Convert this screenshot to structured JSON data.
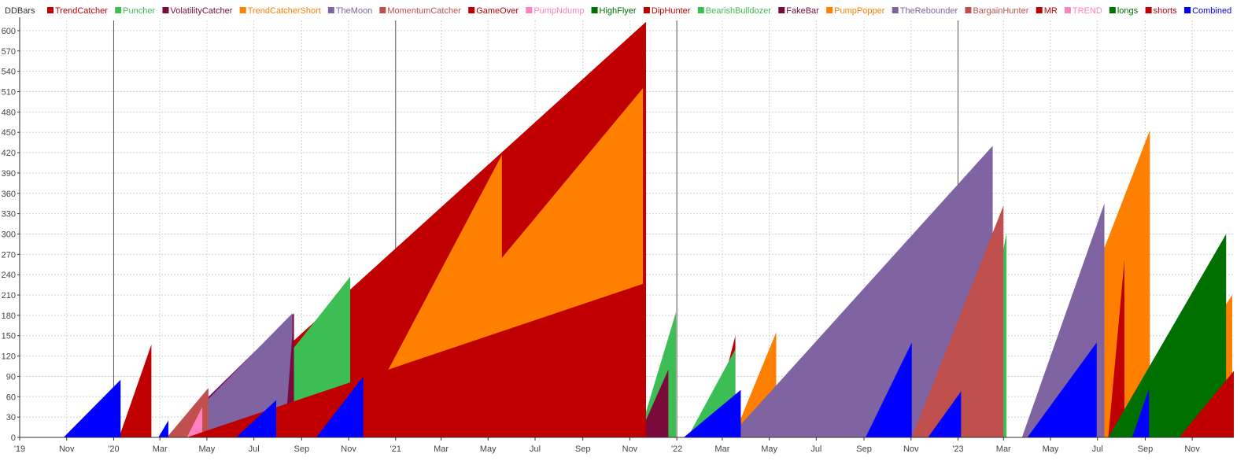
{
  "chart_data": {
    "type": "area",
    "title": "DDBars",
    "legend_position": "top",
    "grid": true,
    "ylim": [
      0,
      615
    ],
    "y_ticks": [
      0,
      30,
      60,
      90,
      120,
      150,
      180,
      210,
      240,
      270,
      300,
      330,
      360,
      390,
      420,
      450,
      480,
      510,
      540,
      570,
      600
    ],
    "x_start": "2019-09-01",
    "x_end": "2023-12-25",
    "x_ticks": [
      {
        "date": "2019-09-01",
        "label": "'19",
        "year": true
      },
      {
        "date": "2019-11-01",
        "label": "Nov",
        "year": false
      },
      {
        "date": "2020-01-01",
        "label": "'20",
        "year": true
      },
      {
        "date": "2020-03-01",
        "label": "Mar",
        "year": false
      },
      {
        "date": "2020-05-01",
        "label": "May",
        "year": false
      },
      {
        "date": "2020-07-01",
        "label": "Jul",
        "year": false
      },
      {
        "date": "2020-09-01",
        "label": "Sep",
        "year": false
      },
      {
        "date": "2020-11-01",
        "label": "Nov",
        "year": false
      },
      {
        "date": "2021-01-01",
        "label": "'21",
        "year": true
      },
      {
        "date": "2021-03-01",
        "label": "Mar",
        "year": false
      },
      {
        "date": "2021-05-01",
        "label": "May",
        "year": false
      },
      {
        "date": "2021-07-01",
        "label": "Jul",
        "year": false
      },
      {
        "date": "2021-09-01",
        "label": "Sep",
        "year": false
      },
      {
        "date": "2021-11-01",
        "label": "Nov",
        "year": false
      },
      {
        "date": "2022-01-01",
        "label": "'22",
        "year": true
      },
      {
        "date": "2022-03-01",
        "label": "Mar",
        "year": false
      },
      {
        "date": "2022-05-01",
        "label": "May",
        "year": false
      },
      {
        "date": "2022-07-01",
        "label": "Jul",
        "year": false
      },
      {
        "date": "2022-09-01",
        "label": "Sep",
        "year": false
      },
      {
        "date": "2022-11-01",
        "label": "Nov",
        "year": false
      },
      {
        "date": "2023-01-01",
        "label": "'23",
        "year": true
      },
      {
        "date": "2023-03-01",
        "label": "Mar",
        "year": false
      },
      {
        "date": "2023-05-01",
        "label": "May",
        "year": false
      },
      {
        "date": "2023-07-01",
        "label": "Jul",
        "year": false
      },
      {
        "date": "2023-09-01",
        "label": "Sep",
        "year": false
      },
      {
        "date": "2023-11-01",
        "label": "Nov",
        "year": false
      }
    ],
    "series": [
      {
        "name": "TrendCatcher",
        "color": "#c00000",
        "segments": [
          [
            [
              "2020-01-08",
              0
            ],
            [
              "2020-02-19",
              137
            ]
          ],
          [
            [
              "2020-04-05",
              0
            ],
            [
              "2021-11-22",
              613
            ]
          ]
        ]
      },
      {
        "name": "Puncher",
        "color": "#3dbe55",
        "segments": [
          [
            [
              "2020-05-22",
              0
            ],
            [
              "2020-11-03",
              237
            ]
          ],
          [
            [
              "2021-11-12",
              0
            ],
            [
              "2021-12-31",
              185
            ]
          ]
        ]
      },
      {
        "name": "VolatilityCatcher",
        "color": "#7a0a3c",
        "segments": [
          [
            [
              "2020-03-10",
              0
            ],
            [
              "2020-08-22",
              183
            ]
          ],
          [
            [
              "2021-11-12",
              0
            ],
            [
              "2021-12-21",
              100
            ]
          ]
        ]
      },
      {
        "name": "TrendCatcherShort",
        "color": "#ff8000",
        "segments": [
          [
            [
              "2020-11-06",
              0
            ],
            [
              "2021-05-19",
              417
            ]
          ],
          [
            [
              "2023-04-06",
              0
            ],
            [
              "2023-09-07",
              453
            ]
          ]
        ]
      },
      {
        "name": "TheMoon",
        "color": "#8064a2",
        "segments": [
          [
            [
              "2020-03-15",
              0
            ],
            [
              "2020-08-20",
              183
            ]
          ]
        ]
      },
      {
        "name": "MomentumCatcher",
        "color": "#c0504d",
        "segments": [
          [
            [
              "2020-03-10",
              0
            ],
            [
              "2020-05-03",
              73
            ]
          ]
        ]
      },
      {
        "name": "GameOver",
        "color": "#c00000",
        "segments": [
          [
            [
              "2021-02-10",
              0
            ],
            [
              "2021-05-19",
              148
            ]
          ],
          [
            [
              "2022-02-12",
              0
            ],
            [
              "2022-03-18",
              150
            ]
          ]
        ]
      },
      {
        "name": "PumpNdump",
        "color": "#ff80c0",
        "segments": [
          [
            [
              "2020-04-05",
              0
            ],
            [
              "2020-04-25",
              45
            ]
          ],
          [
            [
              "2022-11-03",
              0
            ],
            [
              "2023-01-05",
              205
            ]
          ]
        ]
      },
      {
        "name": "HighFlyer",
        "color": "#007000",
        "segments": [
          [
            [
              "2021-05-19",
              0
            ],
            [
              "2021-07-25",
              88
            ]
          ],
          [
            [
              "2022-05-31",
              0
            ],
            [
              "2022-11-02",
              222
            ]
          ]
        ]
      },
      {
        "name": "DipHunter",
        "color": "#c00000",
        "segments": [
          [
            [
              "2021-07-20",
              0
            ],
            [
              "2021-11-19",
              140
            ]
          ],
          [
            [
              "2022-03-15",
              0
            ],
            [
              "2022-04-25",
              87
            ]
          ]
        ]
      },
      {
        "name": "BearishBulldozer",
        "color": "#3dbe55",
        "segments": [
          [
            [
              "2022-01-15",
              0
            ],
            [
              "2022-03-18",
              130
            ]
          ],
          [
            [
              "2023-01-14",
              0
            ],
            [
              "2023-03-05",
              302
            ]
          ]
        ]
      },
      {
        "name": "FakeBar",
        "color": "#7a0a3c",
        "segments": [
          [
            [
              "2020-08-10",
              0
            ],
            [
              "2020-08-22",
              183
            ]
          ]
        ]
      },
      {
        "name": "PumpPopper",
        "color": "#ff8000",
        "segments": [
          [
            [
              "2020-11-06",
              0
            ],
            [
              "2021-11-18",
              515
            ]
          ],
          [
            [
              "2022-03-15",
              0
            ],
            [
              "2022-05-10",
              155
            ]
          ],
          [
            [
              "2023-08-20",
              0
            ],
            [
              "2023-12-23",
              210
            ]
          ]
        ]
      },
      {
        "name": "TheRebounder",
        "color": "#8064a2",
        "segments": [
          [
            [
              "2022-03-10",
              0
            ],
            [
              "2023-02-15",
              430
            ]
          ],
          [
            [
              "2023-03-25",
              0
            ],
            [
              "2023-07-10",
              345
            ]
          ]
        ]
      },
      {
        "name": "BargainHunter",
        "color": "#c0504d",
        "segments": [
          [
            [
              "2022-11-02",
              0
            ],
            [
              "2023-03-01",
              342
            ]
          ]
        ]
      },
      {
        "name": "MR",
        "color": "#c00000",
        "segments": [
          [
            [
              "2020-04-05",
              0
            ],
            [
              "2021-11-22",
              228
            ]
          ],
          [
            [
              "2023-07-15",
              0
            ],
            [
              "2023-08-05",
              262
            ]
          ],
          [
            [
              "2023-10-20",
              0
            ],
            [
              "2023-12-08",
              280
            ]
          ]
        ]
      },
      {
        "name": "TREND",
        "color": "#ff80c0",
        "segments": [
          [
            [
              "2023-10-10",
              0
            ],
            [
              "2023-10-30",
              122
            ]
          ]
        ]
      },
      {
        "name": "longs",
        "color": "#007000",
        "segments": [
          [
            [
              "2023-07-15",
              0
            ],
            [
              "2023-12-15",
              300
            ]
          ]
        ]
      },
      {
        "name": "shorts",
        "color": "#c00000",
        "segments": [
          [
            [
              "2023-10-15",
              0
            ],
            [
              "2023-12-25",
              98
            ]
          ]
        ]
      },
      {
        "name": "Combined",
        "color": "#0000ff",
        "segments": [
          [
            [
              "2019-10-28",
              0
            ],
            [
              "2020-01-10",
              85
            ]
          ],
          [
            [
              "2020-02-28",
              0
            ],
            [
              "2020-03-12",
              25
            ]
          ],
          [
            [
              "2020-06-08",
              0
            ],
            [
              "2020-07-30",
              55
            ]
          ],
          [
            [
              "2020-09-20",
              0
            ],
            [
              "2020-11-20",
              90
            ]
          ],
          [
            [
              "2022-01-10",
              0
            ],
            [
              "2022-03-25",
              70
            ]
          ],
          [
            [
              "2022-09-03",
              0
            ],
            [
              "2022-11-02",
              140
            ]
          ],
          [
            [
              "2022-11-23",
              0
            ],
            [
              "2023-01-05",
              68
            ]
          ],
          [
            [
              "2023-04-01",
              0
            ],
            [
              "2023-06-30",
              140
            ]
          ],
          [
            [
              "2023-08-15",
              0
            ],
            [
              "2023-09-06",
              72
            ]
          ]
        ]
      }
    ]
  }
}
